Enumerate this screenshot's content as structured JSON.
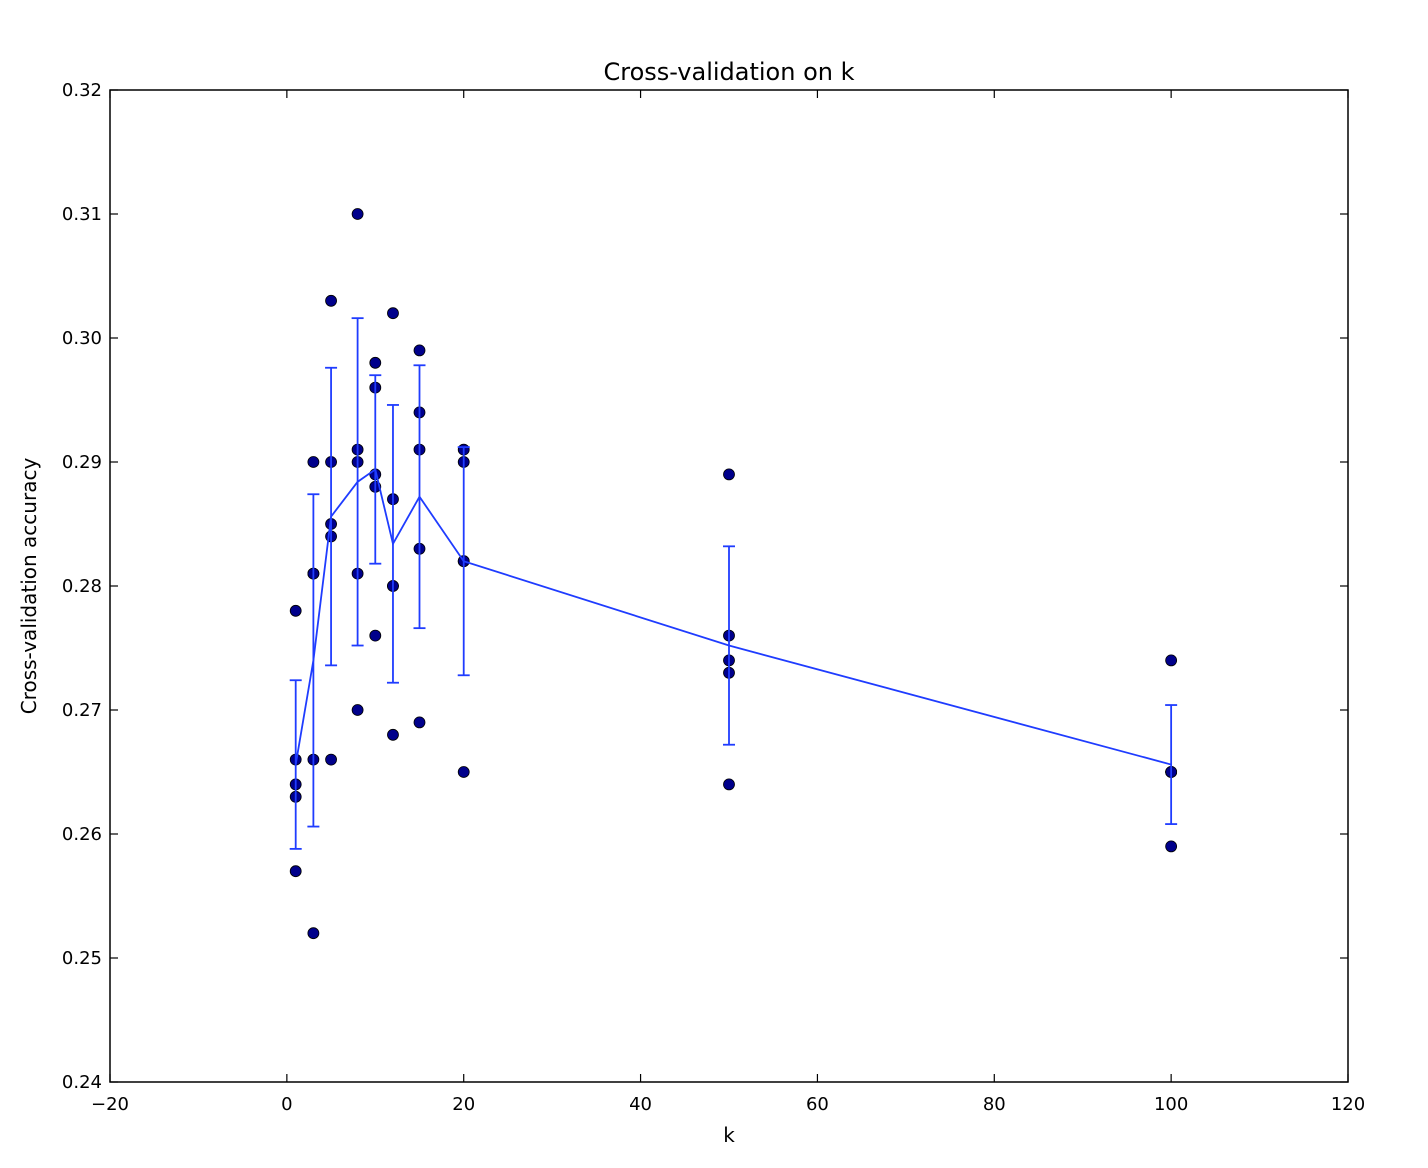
{
  "chart_data": {
    "type": "scatter",
    "title": "Cross-validation on k",
    "xlabel": "k",
    "ylabel": "Cross-validation accuracy",
    "xlim": [
      -20,
      120
    ],
    "ylim": [
      0.24,
      0.32
    ],
    "xticks": [
      -20,
      0,
      20,
      40,
      60,
      80,
      100,
      120
    ],
    "xtick_labels": [
      "−20",
      "0",
      "20",
      "40",
      "60",
      "80",
      "100",
      "120"
    ],
    "yticks": [
      0.24,
      0.25,
      0.26,
      0.27,
      0.28,
      0.29,
      0.3,
      0.31,
      0.32
    ],
    "ytick_labels": [
      "0.24",
      "0.25",
      "0.26",
      "0.27",
      "0.28",
      "0.29",
      "0.30",
      "0.31",
      "0.32"
    ],
    "grid": false,
    "legend": "none",
    "point_color": "#00008b",
    "line_color": "#1f3cff",
    "folds": [
      {
        "k": 1,
        "accuracies": [
          0.263,
          0.257,
          0.264,
          0.278,
          0.266
        ]
      },
      {
        "k": 3,
        "accuracies": [
          0.252,
          0.266,
          0.281,
          0.29,
          0.281
        ]
      },
      {
        "k": 5,
        "accuracies": [
          0.266,
          0.284,
          0.303,
          0.29,
          0.285
        ]
      },
      {
        "k": 8,
        "accuracies": [
          0.27,
          0.281,
          0.291,
          0.31,
          0.29
        ]
      },
      {
        "k": 10,
        "accuracies": [
          0.276,
          0.288,
          0.298,
          0.296,
          0.289
        ]
      },
      {
        "k": 12,
        "accuracies": [
          0.268,
          0.28,
          0.302,
          0.287,
          0.28
        ]
      },
      {
        "k": 15,
        "accuracies": [
          0.269,
          0.283,
          0.291,
          0.299,
          0.294
        ]
      },
      {
        "k": 20,
        "accuracies": [
          0.265,
          0.282,
          0.291,
          0.29,
          0.282
        ]
      },
      {
        "k": 50,
        "accuracies": [
          0.264,
          0.273,
          0.276,
          0.289,
          0.274
        ]
      },
      {
        "k": 100,
        "accuracies": [
          0.259,
          0.265,
          0.274,
          0.265,
          0.265
        ]
      }
    ],
    "mean_line": {
      "k": [
        1,
        3,
        5,
        8,
        10,
        12,
        15,
        20,
        50,
        100
      ],
      "mean": [
        0.2656,
        0.274,
        0.2856,
        0.2884,
        0.2894,
        0.2834,
        0.2872,
        0.282,
        0.2752,
        0.2656
      ],
      "std": [
        0.0068,
        0.0134,
        0.012,
        0.0132,
        0.0076,
        0.0112,
        0.0106,
        0.0092,
        0.008,
        0.0048
      ]
    }
  }
}
